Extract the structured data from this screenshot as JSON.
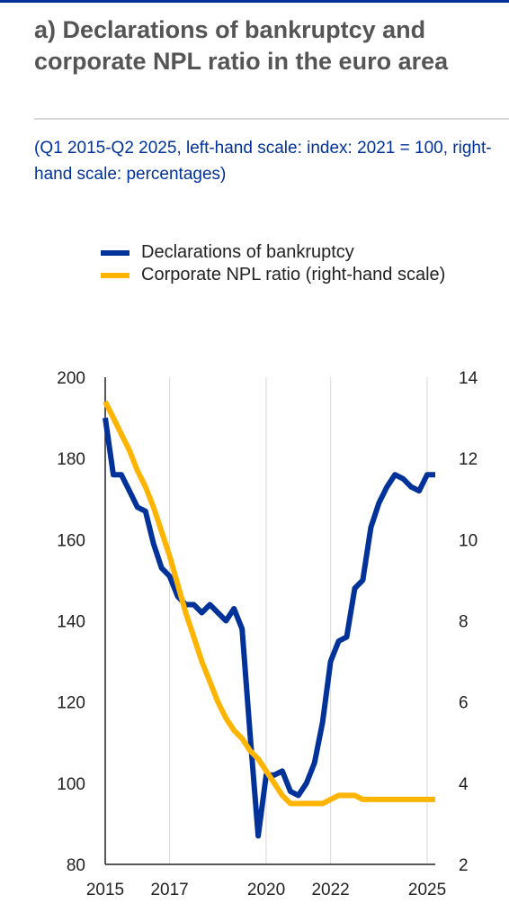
{
  "header": {
    "title": "a) Declarations of bankruptcy and corporate NPL ratio in the euro area",
    "subtitle": "(Q1 2015-Q2 2025, left-hand scale: index: 2021 = 100, right-hand scale: percentages)"
  },
  "chart_data": {
    "type": "line",
    "x_unit": "quarters",
    "x_range": [
      "2015-Q1",
      "2025-Q2"
    ],
    "x_tick_labels": [
      "2015",
      "2017",
      "2020",
      "2022",
      "2025"
    ],
    "left_axis": {
      "ylim": [
        80,
        200
      ],
      "ticks": [
        80,
        100,
        120,
        140,
        160,
        180,
        200
      ]
    },
    "right_axis": {
      "ylim": [
        2,
        14
      ],
      "ticks": [
        2,
        4,
        6,
        8,
        10,
        12,
        14
      ]
    },
    "grid": "vertical",
    "legend_position": "top",
    "series": [
      {
        "name": "Declarations of bankruptcy",
        "axis": "left",
        "color": "#003299",
        "x": [
          2015.0,
          2015.25,
          2015.5,
          2015.75,
          2016.0,
          2016.25,
          2016.5,
          2016.75,
          2017.0,
          2017.25,
          2017.5,
          2017.75,
          2018.0,
          2018.25,
          2018.5,
          2018.75,
          2019.0,
          2019.25,
          2019.5,
          2019.75,
          2020.0,
          2020.25,
          2020.5,
          2020.75,
          2021.0,
          2021.25,
          2021.5,
          2021.75,
          2022.0,
          2022.25,
          2022.5,
          2022.75,
          2023.0,
          2023.25,
          2023.5,
          2023.75,
          2024.0,
          2024.25,
          2024.5,
          2024.75,
          2025.0,
          2025.25
        ],
        "values": [
          190,
          176,
          176,
          172,
          168,
          167,
          159,
          153,
          151,
          146,
          144,
          144,
          142,
          144,
          142,
          140,
          143,
          138,
          112,
          87,
          102,
          102,
          103,
          98,
          97,
          100,
          105,
          115,
          130,
          135,
          136,
          148,
          150,
          163,
          169,
          173,
          176,
          175,
          173,
          172,
          176,
          176
        ]
      },
      {
        "name": "Corporate NPL ratio (right-hand scale)",
        "axis": "right",
        "color": "#ffb400",
        "x": [
          2015.0,
          2015.25,
          2015.5,
          2015.75,
          2016.0,
          2016.25,
          2016.5,
          2016.75,
          2017.0,
          2017.25,
          2017.5,
          2017.75,
          2018.0,
          2018.25,
          2018.5,
          2018.75,
          2019.0,
          2019.25,
          2019.5,
          2019.75,
          2020.0,
          2020.25,
          2020.5,
          2020.75,
          2021.0,
          2021.25,
          2021.5,
          2021.75,
          2022.0,
          2022.25,
          2022.5,
          2022.75,
          2023.0,
          2023.25,
          2023.5,
          2023.75,
          2024.0,
          2024.25,
          2024.5,
          2024.75,
          2025.0,
          2025.25
        ],
        "values": [
          13.4,
          13.0,
          12.6,
          12.2,
          11.7,
          11.3,
          10.8,
          10.2,
          9.6,
          8.9,
          8.2,
          7.6,
          7.0,
          6.5,
          6.0,
          5.6,
          5.3,
          5.1,
          4.8,
          4.6,
          4.3,
          4.0,
          3.7,
          3.5,
          3.5,
          3.5,
          3.5,
          3.5,
          3.6,
          3.7,
          3.7,
          3.7,
          3.6,
          3.6,
          3.6,
          3.6,
          3.6,
          3.6,
          3.6,
          3.6,
          3.6,
          3.6
        ]
      }
    ]
  }
}
